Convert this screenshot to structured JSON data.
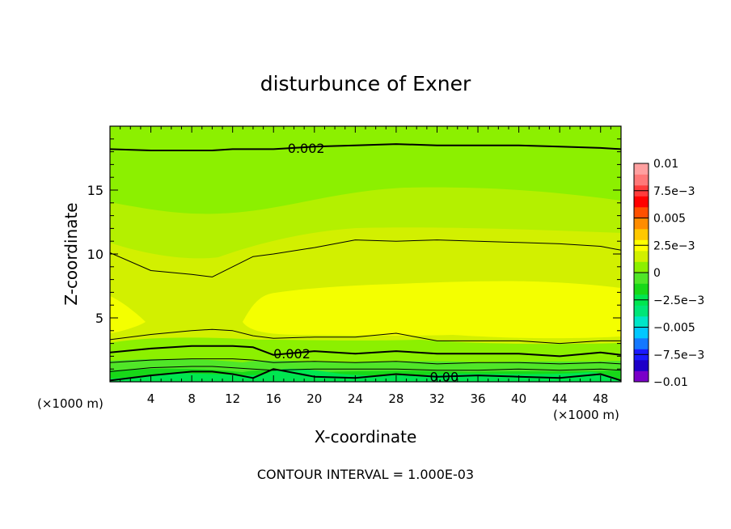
{
  "chart_data": {
    "type": "contour",
    "title": "disturbunce of Exner",
    "xlabel": "X-coordinate",
    "ylabel": "Z-coordinate",
    "x_unit_left": "(×1000 m)",
    "x_unit_right": "(×1000 m)",
    "footer": "CONTOUR INTERVAL = 1.000E-03",
    "xlim": [
      0,
      50
    ],
    "ylim": [
      0,
      20
    ],
    "x_ticks": [
      4,
      8,
      12,
      16,
      20,
      24,
      28,
      32,
      36,
      40,
      44,
      48
    ],
    "x_tick_labels": [
      "4",
      "8",
      "12",
      "16",
      "20",
      "24",
      "28",
      "32",
      "36",
      "40",
      "44",
      "48"
    ],
    "y_ticks": [
      5,
      10,
      15
    ],
    "y_tick_labels": [
      "5",
      "10",
      "15"
    ],
    "contour_labels": [
      {
        "text": "0.002",
        "x": 19.2,
        "z": 18.3
      },
      {
        "text": "0.002",
        "x": 17.8,
        "z": 2.2
      },
      {
        "text": "0.00",
        "x": 32.7,
        "z": 0.4
      }
    ],
    "colorbar": {
      "levels": [
        -0.01,
        -0.0075,
        -0.005,
        -0.0025,
        0,
        0.0025,
        0.005,
        0.0075,
        0.01
      ],
      "labels": [
        "0.01",
        "7.5e−3",
        "0.005",
        "2.5e−3",
        "0",
        "−2.5e−3",
        "−0.005",
        "−7.5e−3",
        "−0.01"
      ],
      "colors_bottom_to_top": [
        "#7a00c8",
        "#1e00c8",
        "#1a1aff",
        "#1478ff",
        "#00c8ff",
        "#00e6c8",
        "#00e678",
        "#00e650",
        "#18d818",
        "#50e628",
        "#8cf000",
        "#d2f000",
        "#ffff00",
        "#ffc800",
        "#ff8c00",
        "#ff5000",
        "#ff0000",
        "#ff3c3c",
        "#ff7878",
        "#ffa0a0"
      ]
    },
    "contours_x": [
      0,
      4,
      8,
      10,
      12,
      14,
      16,
      20,
      24,
      28,
      32,
      36,
      40,
      44,
      48,
      50
    ],
    "contours": [
      {
        "value": "0.002",
        "style": "thick",
        "z": [
          18.2,
          18.1,
          18.1,
          18.1,
          18.2,
          18.2,
          18.2,
          18.4,
          18.5,
          18.6,
          18.5,
          18.5,
          18.5,
          18.4,
          18.3,
          18.2
        ]
      },
      {
        "value": "0.0025",
        "style": "thin",
        "z": [
          10.1,
          8.7,
          8.4,
          8.2,
          9.0,
          9.8,
          10.0,
          10.5,
          11.1,
          11.0,
          11.1,
          11.0,
          10.9,
          10.8,
          10.6,
          10.3
        ]
      },
      {
        "value": "0.0025",
        "style": "thin",
        "z": [
          3.3,
          3.7,
          4.0,
          4.1,
          4.0,
          3.6,
          3.4,
          3.5,
          3.5,
          3.8,
          3.2,
          3.2,
          3.2,
          3.0,
          3.2,
          3.2
        ]
      },
      {
        "value": "0.002",
        "style": "thick",
        "z": [
          2.3,
          2.6,
          2.8,
          2.8,
          2.8,
          2.7,
          2.1,
          2.4,
          2.2,
          2.4,
          2.2,
          2.2,
          2.2,
          2.0,
          2.3,
          2.1
        ]
      },
      {
        "value": "0.0015",
        "style": "thin",
        "z": [
          1.5,
          1.7,
          1.8,
          1.8,
          1.8,
          1.7,
          1.5,
          1.6,
          1.5,
          1.6,
          1.4,
          1.5,
          1.5,
          1.4,
          1.5,
          1.4
        ]
      },
      {
        "value": "0.001",
        "style": "thin",
        "z": [
          0.8,
          1.1,
          1.2,
          1.2,
          1.1,
          1.0,
          0.9,
          1.0,
          1.0,
          1.0,
          0.9,
          0.9,
          1.0,
          0.9,
          1.0,
          0.9
        ]
      },
      {
        "value": "0.00",
        "style": "thick",
        "z": [
          0.1,
          0.5,
          0.8,
          0.8,
          0.6,
          0.3,
          1.0,
          0.4,
          0.3,
          0.6,
          0.4,
          0.5,
          0.4,
          0.3,
          0.6,
          0.1
        ]
      }
    ]
  }
}
